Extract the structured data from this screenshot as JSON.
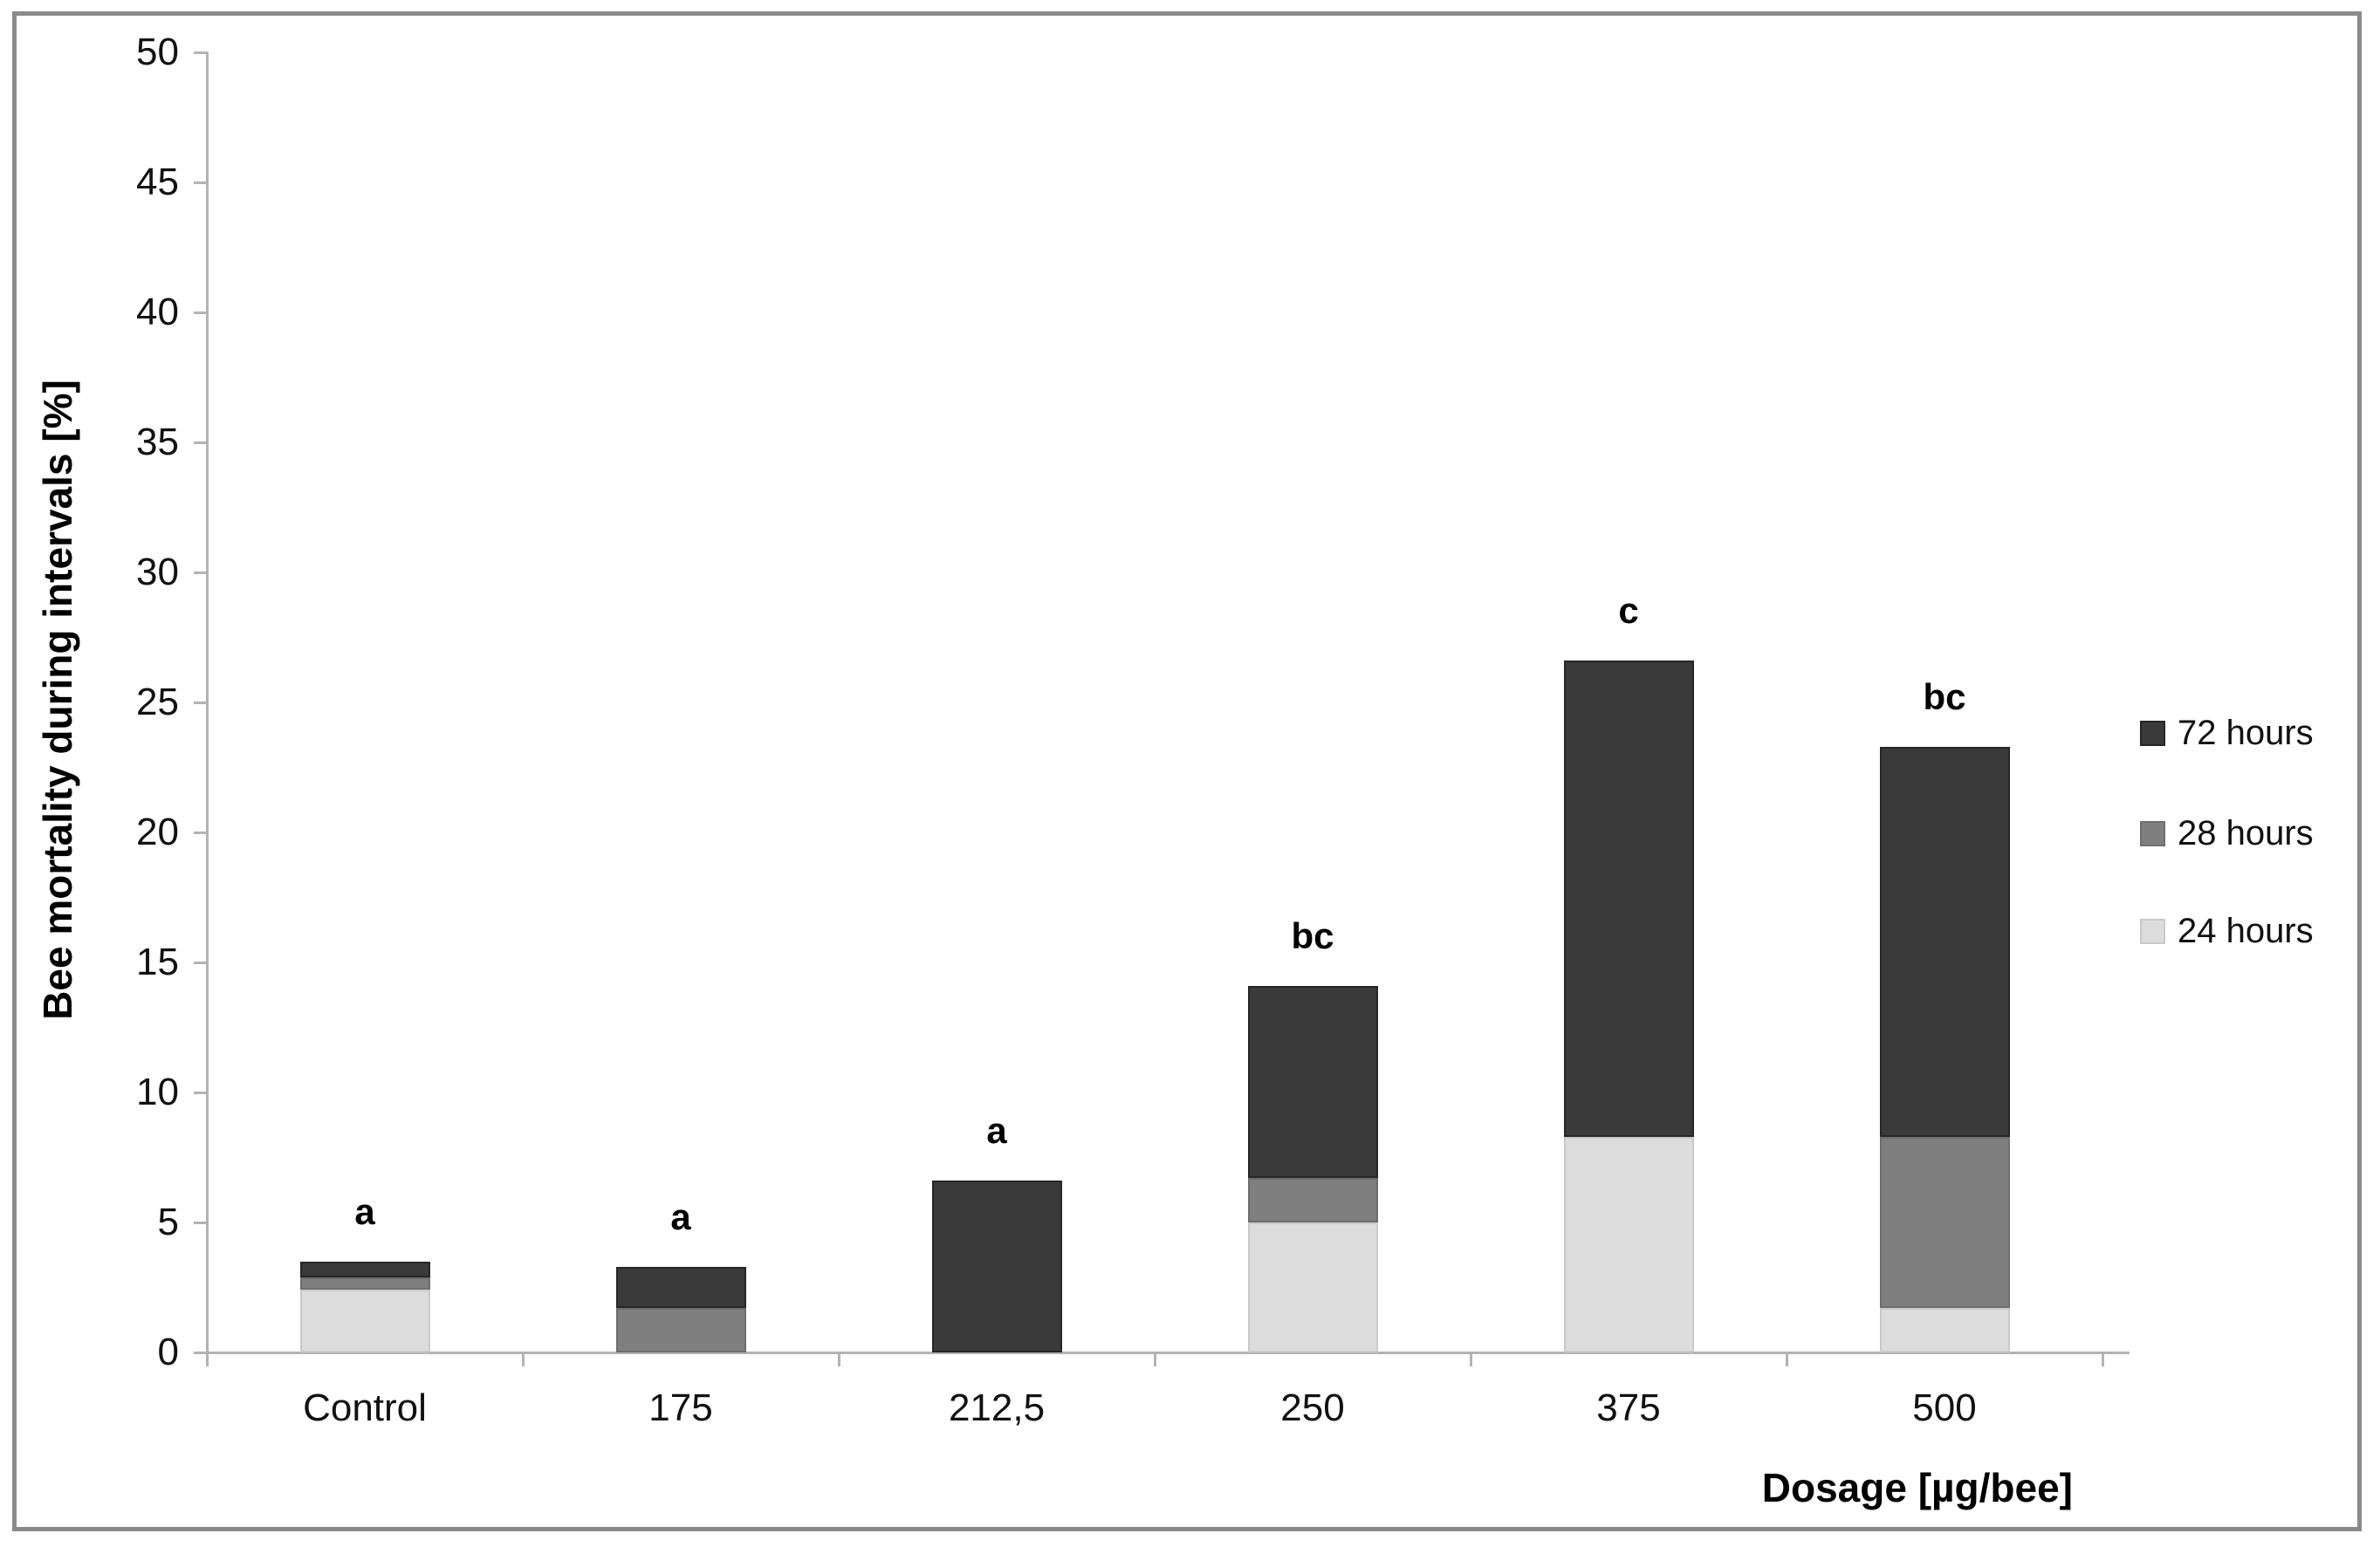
{
  "chart_data": {
    "type": "bar",
    "variant": "stacked",
    "title": "",
    "xlabel": "Dosage [µg/bee]",
    "ylabel": "Bee mortality during intervals [%]",
    "ylim": [
      0,
      50
    ],
    "y_ticks": [
      0,
      5,
      10,
      15,
      20,
      25,
      30,
      35,
      40,
      45,
      50
    ],
    "grid": false,
    "categories": [
      "Control",
      "175",
      "212,5",
      "250",
      "375",
      "500"
    ],
    "series": [
      {
        "name": "24 hours",
        "color": "#dcdcdc",
        "border": "#c9c9c9",
        "values": [
          2.4,
          0,
          0,
          5.0,
          8.3,
          1.7
        ]
      },
      {
        "name": "28 hours",
        "color": "#7f7f7f",
        "border": "#6e6e6e",
        "values": [
          0.5,
          1.7,
          0,
          1.7,
          0,
          6.6
        ]
      },
      {
        "name": "72 hours",
        "color": "#3a3a3a",
        "border": "#262626",
        "values": [
          0.6,
          1.6,
          6.6,
          7.4,
          18.3,
          15.0
        ]
      }
    ],
    "sig_letters": [
      "a",
      "a",
      "a",
      "bc",
      "c",
      "bc"
    ],
    "legend": {
      "position": "right",
      "items_top_to_bottom": [
        "72 hours",
        "28 hours",
        "24 hours"
      ]
    },
    "colors": {
      "axis_line": "#b3b3b3",
      "text": "#111111",
      "frame_border": "#8a8a8a",
      "background": "#ffffff"
    }
  }
}
